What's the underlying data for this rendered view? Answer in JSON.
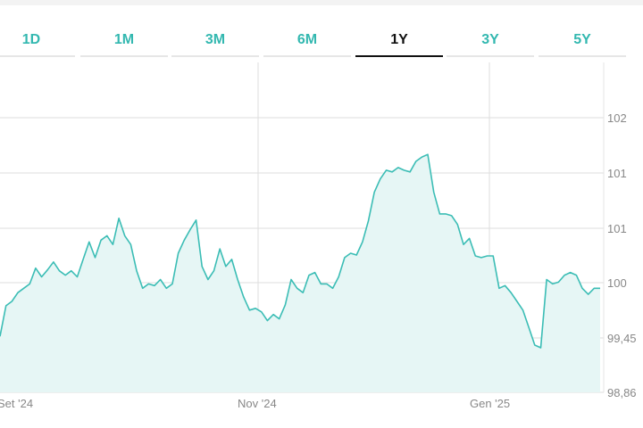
{
  "tabs": [
    {
      "label": "1D"
    },
    {
      "label": "1M"
    },
    {
      "label": "3M"
    },
    {
      "label": "6M"
    },
    {
      "label": "1Y",
      "active": true
    },
    {
      "label": "3Y"
    },
    {
      "label": "5Y"
    }
  ],
  "colors": {
    "accent": "#33b8b0",
    "line": "#3bbdb5",
    "fill": "#e6f6f5",
    "grid": "#dddddd",
    "active_tab": "#111111"
  },
  "chart_data": {
    "type": "area",
    "y_tick_labels": [
      "102",
      "101",
      "101",
      "100",
      "99,45",
      "98,86"
    ],
    "x_tick_labels": [
      "Set '24",
      "Nov '24",
      "Gen '25"
    ],
    "grid": true,
    "values": [
      99.5,
      99.85,
      99.9,
      100.0,
      100.05,
      100.1,
      100.28,
      100.18,
      100.26,
      100.35,
      100.25,
      100.2,
      100.25,
      100.18,
      100.38,
      100.58,
      100.4,
      100.6,
      100.65,
      100.55,
      100.85,
      100.65,
      100.55,
      100.25,
      100.05,
      100.1,
      100.08,
      100.15,
      100.05,
      100.1,
      100.45,
      100.6,
      100.72,
      100.83,
      100.3,
      100.15,
      100.25,
      100.5,
      100.3,
      100.38,
      100.15,
      99.95,
      99.8,
      99.82,
      99.78,
      99.68,
      99.75,
      99.7,
      99.86,
      100.15,
      100.05,
      100.0,
      100.2,
      100.23,
      100.1,
      100.1,
      100.05,
      100.18,
      100.4,
      100.45,
      100.43,
      100.58,
      100.82,
      101.15,
      101.3,
      101.4,
      101.38,
      101.43,
      101.4,
      101.38,
      101.5,
      101.55,
      101.58,
      101.15,
      100.9,
      100.9,
      100.88,
      100.78,
      100.55,
      100.62,
      100.42,
      100.4,
      100.42,
      100.42,
      100.05,
      100.08,
      100.0,
      99.9,
      99.8,
      99.6,
      99.4,
      99.37,
      100.15,
      100.1,
      100.12,
      100.2,
      100.23,
      100.2,
      100.05,
      99.98,
      100.05,
      100.05
    ]
  }
}
